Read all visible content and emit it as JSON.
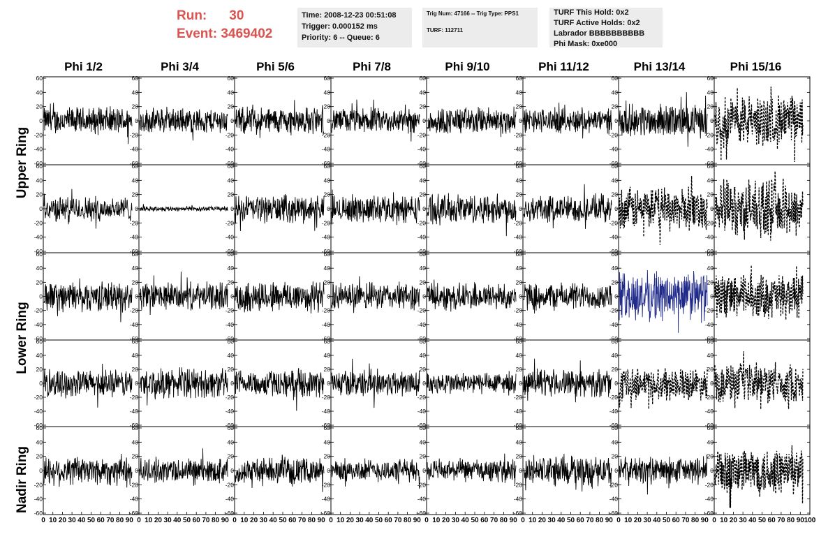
{
  "header": {
    "run_label": "Run:",
    "run_value": "30",
    "event_label": "Event:",
    "event_value": "3469402",
    "time_line": "Time: 2008-12-23 00:51:08",
    "trigger_line": "Trigger: 0.000152 ms",
    "priority_line": "Priority: 6 -- Queue: 6",
    "trig_line": "Trig Num: 47166 -- Trig Type: PPS1",
    "turf_line": "TURF: 112711",
    "turf_hold": "TURF This Hold: 0x2",
    "turf_active": "TURF Active Holds: 0x2",
    "labrador": "Labrador BBBBBBBBBB",
    "phi_mask": "Phi Mask: 0xe000"
  },
  "columns": [
    "Phi 1/2",
    "Phi 3/4",
    "Phi 5/6",
    "Phi 7/8",
    "Phi 9/10",
    "Phi 11/12",
    "Phi 13/14",
    "Phi 15/16"
  ],
  "rings": [
    "Upper Ring",
    "Lower Ring",
    "Nadir Ring"
  ],
  "chart_data": {
    "type": "line",
    "title": "",
    "xlabel": "",
    "ylabel": "",
    "xlim": [
      0,
      100
    ],
    "ylim": [
      -60,
      60
    ],
    "y_ticks": [
      60,
      40,
      20,
      0,
      -20,
      -40,
      -60
    ],
    "x_tick_labels": [
      "0",
      "10",
      "20",
      "30",
      "40",
      "50",
      "60",
      "70",
      "80",
      "90",
      "100"
    ],
    "x_tick_labels_printed": [
      "0",
      "10",
      "20",
      "30",
      "40",
      "50",
      "60",
      "70",
      "80",
      "90",
      "0"
    ],
    "grid": false,
    "panel_rows": 5,
    "panel_cols": 8,
    "row_groups": [
      {
        "ring": "Upper Ring",
        "rows": [
          0,
          1
        ]
      },
      {
        "ring": "Lower Ring",
        "rows": [
          2,
          3
        ]
      },
      {
        "ring": "Nadir Ring",
        "rows": [
          4
        ]
      }
    ],
    "waveform_amplitude": [
      [
        22,
        20,
        22,
        20,
        22,
        20,
        26,
        42
      ],
      [
        20,
        4,
        22,
        22,
        24,
        22,
        34,
        46
      ],
      [
        24,
        22,
        26,
        22,
        22,
        22,
        40,
        36
      ],
      [
        22,
        24,
        22,
        22,
        18,
        22,
        26,
        32
      ],
      [
        24,
        20,
        20,
        18,
        18,
        24,
        22,
        40
      ]
    ],
    "waveform_colors": [
      [
        "#000000",
        "#000000",
        "#000000",
        "#000000",
        "#000000",
        "#000000",
        "#000000",
        "#000000"
      ],
      [
        "#000000",
        "#000000",
        "#000000",
        "#000000",
        "#000000",
        "#000000",
        "#000000",
        "#000000"
      ],
      [
        "#000000",
        "#000000",
        "#000000",
        "#000000",
        "#000000",
        "#000000",
        "#1f2a8a",
        "#000000"
      ],
      [
        "#000000",
        "#000000",
        "#000000",
        "#000000",
        "#000000",
        "#000000",
        "#000000",
        "#000000"
      ],
      [
        "#000000",
        "#000000",
        "#000000",
        "#000000",
        "#000000",
        "#000000",
        "#000000",
        "#000000"
      ]
    ],
    "waveform_dashed": [
      [
        false,
        false,
        false,
        false,
        false,
        false,
        false,
        true
      ],
      [
        false,
        false,
        false,
        false,
        false,
        false,
        true,
        true
      ],
      [
        false,
        false,
        false,
        false,
        false,
        false,
        false,
        true
      ],
      [
        false,
        false,
        false,
        false,
        false,
        false,
        true,
        true
      ],
      [
        false,
        false,
        false,
        false,
        false,
        false,
        false,
        true
      ]
    ]
  }
}
